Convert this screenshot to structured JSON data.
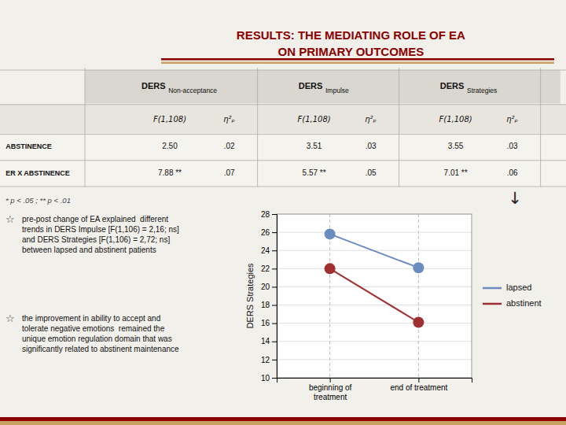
{
  "chart_data": [
    {
      "type": "table",
      "title": "RESULTS: THE MEDIATING ROLE OF EA",
      "subtitle": "ON PRIMARY OUTCOMES",
      "categories": [
        "ABSTINENCE",
        "ER X ABSTINENCE"
      ],
      "groups": [
        {
          "name": "DERS",
          "subscript": "Non-acceptance",
          "series": [
            {
              "name": "F(1,108)",
              "values": [
                2.5,
                7.88
              ],
              "value_labels": [
                "2.50",
                "7.88 **"
              ]
            },
            {
              "name": "η²ₚ",
              "values": [
                0.02,
                0.07
              ],
              "value_labels": [
                ".02",
                ".07"
              ]
            }
          ]
        },
        {
          "name": "DERS",
          "subscript": "Impulse",
          "series": [
            {
              "name": "F(1,108)",
              "values": [
                3.51,
                5.57
              ],
              "value_labels": [
                "3.51",
                "5.57 **"
              ]
            },
            {
              "name": "η²ₚ",
              "values": [
                0.03,
                0.05
              ],
              "value_labels": [
                ".03",
                ".05"
              ]
            }
          ]
        },
        {
          "name": "DERS",
          "subscript": "Strategies",
          "series": [
            {
              "name": "F(1,108)",
              "values": [
                3.55,
                7.01
              ],
              "value_labels": [
                "3.55",
                "7.01 **"
              ]
            },
            {
              "name": "η²ₚ",
              "values": [
                0.03,
                0.06
              ],
              "value_labels": [
                ".03",
                ".06"
              ]
            }
          ]
        }
      ],
      "annotations": [
        "* p < .05 ; ** p < .01"
      ]
    },
    {
      "type": "line",
      "categories": [
        "beginning of\ntreatment",
        "end of treatment"
      ],
      "series": [
        {
          "name": "lapsed",
          "color": "#6b8cbf",
          "values": [
            25.8,
            22.1
          ]
        },
        {
          "name": "abstinent",
          "color": "#9e3030",
          "values": [
            22.0,
            16.1
          ]
        }
      ],
      "ylabel": "DERS Strategies",
      "ylim": [
        10,
        28
      ],
      "yticks": [
        10,
        12,
        14,
        16,
        18,
        20,
        22,
        24,
        26,
        28
      ],
      "grid": true,
      "legend": "right",
      "marker": "circle",
      "annotations": [
        {
          "symbol": "☆",
          "text": "pre-post change of EA explained  different\ntrends in DERS Impulse [F(1,106) = 2,16; ns]\nand DERS Strategies [F(1,106) = 2,72; ns]\nbetween lapsed and abstinent patients"
        },
        {
          "symbol": "☆",
          "text": "the improvement in ability to accept and\ntolerate negative emotions  remained the\nunique emotion regulation domain that was\nsignificantly related to abstinent maintenance"
        },
        {
          "text": "↓"
        }
      ]
    }
  ]
}
